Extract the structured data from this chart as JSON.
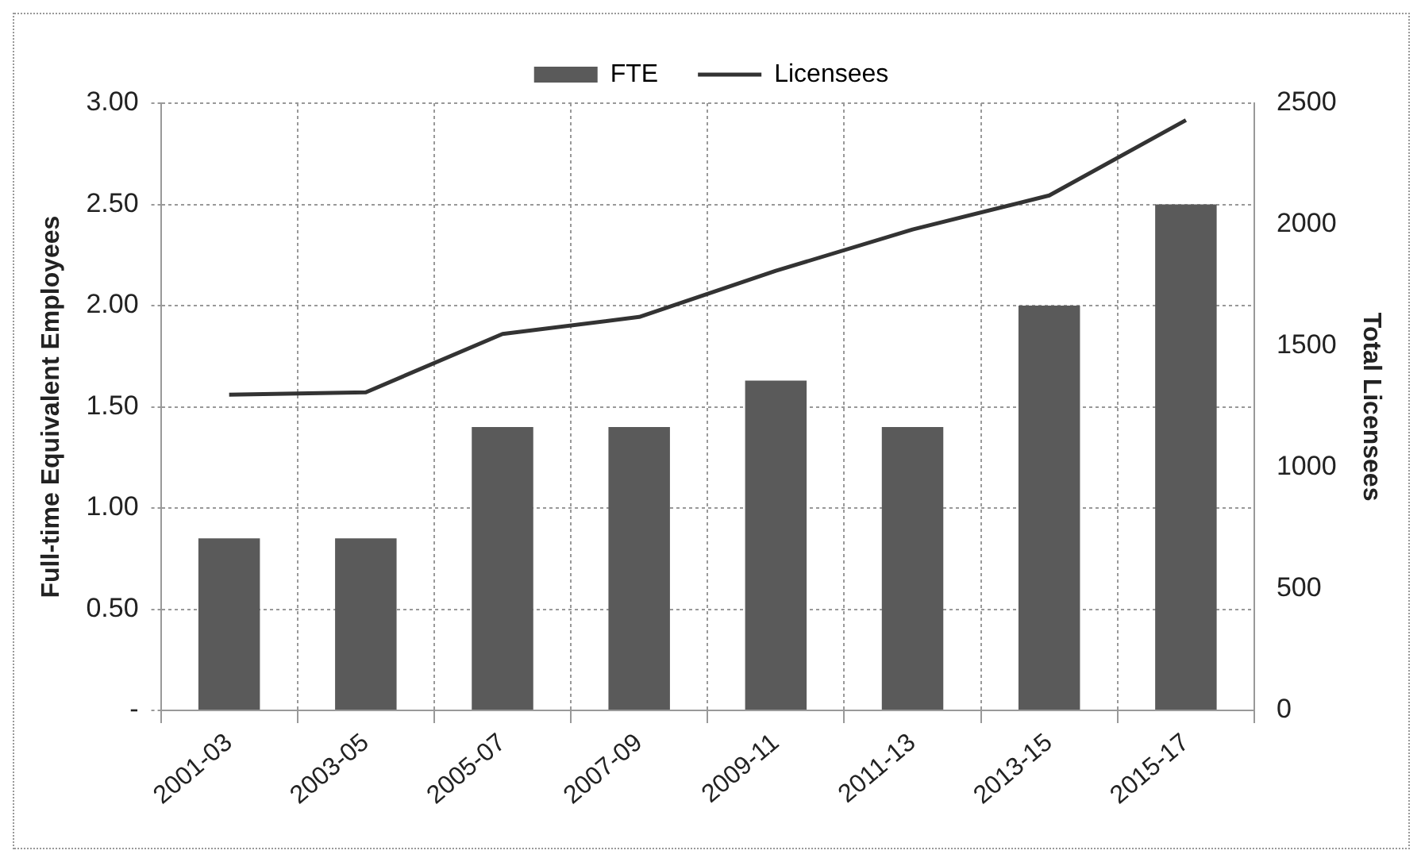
{
  "chart_data": {
    "type": "bar",
    "categories": [
      "2001-03",
      "2003-05",
      "2005-07",
      "2007-09",
      "2009-11",
      "2011-13",
      "2013-15",
      "2015-17"
    ],
    "series": [
      {
        "name": "FTE",
        "color": "#5a5a5a",
        "values": [
          0.85,
          0.85,
          1.4,
          1.4,
          1.63,
          1.4,
          2.0,
          2.5
        ]
      },
      {
        "name": "Licensees",
        "type": "line",
        "axis": "y2",
        "color": "#333333",
        "values": [
          1300,
          1310,
          1550,
          1620,
          1810,
          1980,
          2120,
          2430
        ]
      }
    ],
    "ylabel": "Full-time Equivalent Employees",
    "y2label": "Total Licensees",
    "ylim": [
      0,
      3
    ],
    "yticks": [
      {
        "value": 0,
        "label": "-"
      },
      {
        "value": 0.5,
        "label": "0.50"
      },
      {
        "value": 1,
        "label": "1.00"
      },
      {
        "value": 1.5,
        "label": "1.50"
      },
      {
        "value": 2,
        "label": "2.00"
      },
      {
        "value": 2.5,
        "label": "2.50"
      },
      {
        "value": 3,
        "label": "3.00"
      }
    ],
    "y2lim": [
      0,
      2500
    ],
    "y2ticks": [
      0,
      500,
      1000,
      1500,
      2000,
      2500
    ],
    "grid": true,
    "legend": "top",
    "marker": "none",
    "line_style": "solid"
  }
}
